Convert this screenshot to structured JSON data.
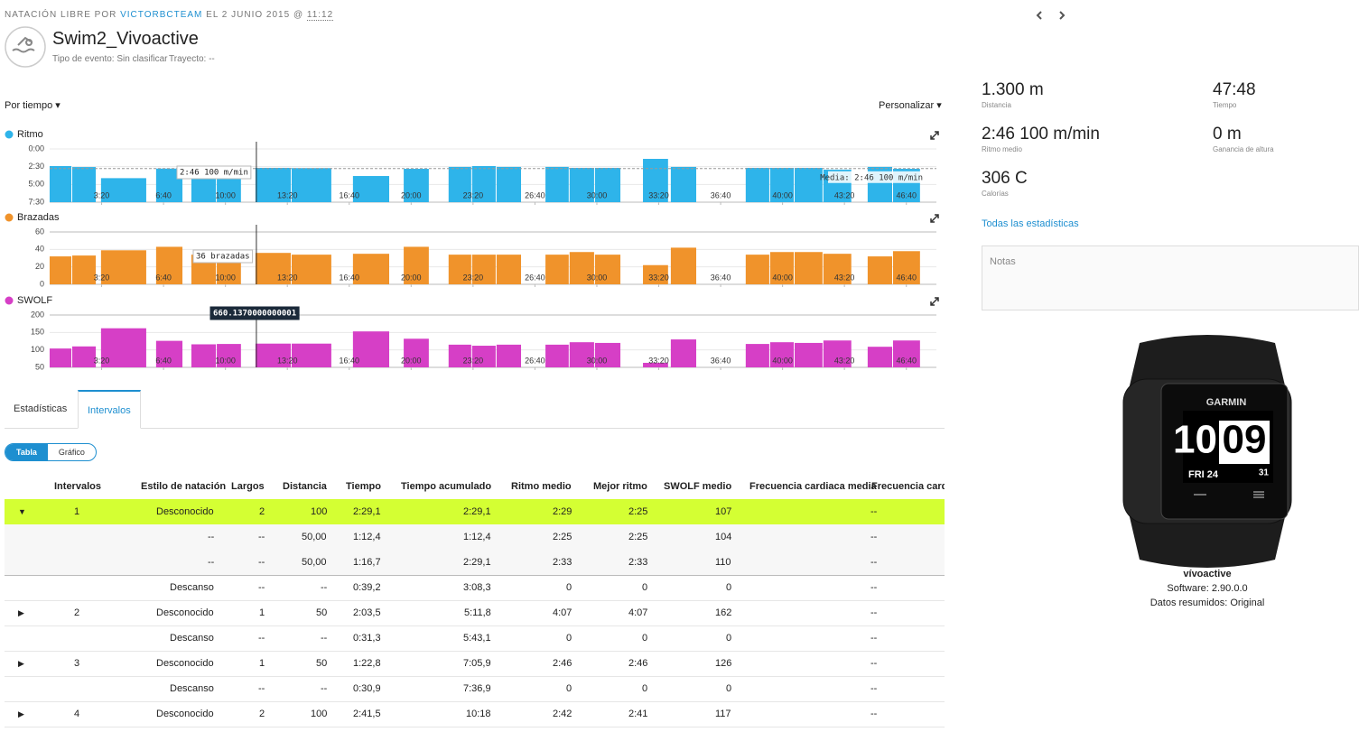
{
  "header": {
    "activity": "NATACIÓN LIBRE POR",
    "user": "VICTORBCTEAM",
    "date": "EL 2 JUNIO 2015 @",
    "time": "11:12",
    "title": "Swim2_Vivoactive",
    "event_type": "Tipo de evento: Sin clasificar",
    "course": "Trayecto: --"
  },
  "controls": {
    "time_mode": "Por tiempo",
    "customize": "Personalizar"
  },
  "chart_data": [
    {
      "type": "bar",
      "title": "Ritmo",
      "color": "#2eb4ea",
      "xlim": [
        0,
        2900
      ],
      "x_start": [
        32,
        105,
        198,
        376,
        490,
        572,
        697,
        814,
        1012,
        1176,
        1321,
        1397,
        1476,
        1634,
        1712,
        1794,
        1949,
        2039,
        2281,
        2360,
        2439,
        2532,
        2675,
        2757
      ],
      "x_end": [
        105,
        184,
        347,
        464,
        572,
        653,
        814,
        945,
        1132,
        1260,
        1397,
        1476,
        1558,
        1712,
        1794,
        1879,
        2033,
        2124,
        2360,
        2439,
        2532,
        2625,
        2757,
        2847
      ],
      "values": [
        145,
        153,
        247,
        166,
        160,
        160,
        160,
        162,
        229,
        168,
        152,
        145,
        152,
        152,
        160,
        160,
        84,
        152,
        160,
        160,
        160,
        175,
        152,
        168
      ],
      "xticks": [
        {
          "value": 200,
          "label": "3:20"
        },
        {
          "value": 400,
          "label": "6:40"
        },
        {
          "value": 600,
          "label": "10:00"
        },
        {
          "value": 800,
          "label": "13:20"
        },
        {
          "value": 1000,
          "label": "16:40"
        },
        {
          "value": 1200,
          "label": "20:00"
        },
        {
          "value": 1400,
          "label": "23:20"
        },
        {
          "value": 1600,
          "label": "26:40"
        },
        {
          "value": 1800,
          "label": "30:00"
        },
        {
          "value": 2000,
          "label": "33:20"
        },
        {
          "value": 2200,
          "label": "36:40"
        },
        {
          "value": 2400,
          "label": "40:00"
        },
        {
          "value": 2600,
          "label": "43:20"
        },
        {
          "value": 2800,
          "label": "46:40"
        }
      ],
      "ylim": [
        0,
        450
      ],
      "y_inverted": true,
      "yticks": [
        {
          "value": 0,
          "label": "0:00"
        },
        {
          "value": 150,
          "label": "2:30"
        },
        {
          "value": 300,
          "label": "5:00"
        },
        {
          "value": 450,
          "label": "7:30"
        }
      ],
      "average": 166,
      "average_label": "Media: 2:46 100 m/min",
      "cursor": 700,
      "tooltip": "2:46 100 m/min",
      "tooltip_dark": false
    },
    {
      "type": "bar",
      "title": "Brazadas",
      "color": "#f0932b",
      "xlim": [
        0,
        2900
      ],
      "x_start": [
        32,
        105,
        198,
        376,
        490,
        572,
        697,
        814,
        1012,
        1176,
        1321,
        1397,
        1476,
        1634,
        1712,
        1794,
        1949,
        2039,
        2281,
        2360,
        2439,
        2532,
        2675,
        2757
      ],
      "x_end": [
        105,
        184,
        347,
        464,
        572,
        653,
        814,
        945,
        1132,
        1260,
        1397,
        1476,
        1558,
        1712,
        1794,
        1879,
        2033,
        2124,
        2360,
        2439,
        2532,
        2625,
        2757,
        2847
      ],
      "values": [
        32,
        33,
        39,
        43,
        34,
        36,
        36,
        34,
        35,
        43,
        34,
        34,
        34,
        34,
        37,
        34,
        22,
        42,
        34,
        37,
        37,
        35,
        32,
        38
      ],
      "xticks": [
        {
          "value": 200,
          "label": "3:20"
        },
        {
          "value": 400,
          "label": "6:40"
        },
        {
          "value": 600,
          "label": "10:00"
        },
        {
          "value": 800,
          "label": "13:20"
        },
        {
          "value": 1000,
          "label": "16:40"
        },
        {
          "value": 1200,
          "label": "20:00"
        },
        {
          "value": 1400,
          "label": "23:20"
        },
        {
          "value": 1600,
          "label": "26:40"
        },
        {
          "value": 1800,
          "label": "30:00"
        },
        {
          "value": 2000,
          "label": "33:20"
        },
        {
          "value": 2200,
          "label": "36:40"
        },
        {
          "value": 2400,
          "label": "40:00"
        },
        {
          "value": 2600,
          "label": "43:20"
        },
        {
          "value": 2800,
          "label": "46:40"
        }
      ],
      "ylim": [
        0,
        60
      ],
      "y_inverted": false,
      "yticks": [
        0,
        20,
        40,
        60
      ],
      "cursor": 700,
      "tooltip": "36 brazadas",
      "tooltip_dark": false
    },
    {
      "type": "bar",
      "title": "SWOLF",
      "color": "#d63fc6",
      "xlim": [
        0,
        2900
      ],
      "x_start": [
        32,
        105,
        198,
        376,
        490,
        572,
        697,
        814,
        1012,
        1176,
        1321,
        1397,
        1476,
        1634,
        1712,
        1794,
        1949,
        2039,
        2281,
        2360,
        2439,
        2532,
        2675,
        2757
      ],
      "x_end": [
        105,
        184,
        347,
        464,
        572,
        653,
        814,
        945,
        1132,
        1260,
        1397,
        1476,
        1558,
        1712,
        1794,
        1879,
        2033,
        2124,
        2360,
        2439,
        2532,
        2625,
        2757,
        2847
      ],
      "values": [
        104,
        110,
        162,
        126,
        116,
        117,
        118,
        118,
        153,
        132,
        115,
        112,
        115,
        115,
        122,
        120,
        63,
        130,
        117,
        122,
        120,
        127,
        109,
        127
      ],
      "xticks": [
        {
          "value": 200,
          "label": "3:20"
        },
        {
          "value": 400,
          "label": "6:40"
        },
        {
          "value": 600,
          "label": "10:00"
        },
        {
          "value": 800,
          "label": "13:20"
        },
        {
          "value": 1000,
          "label": "16:40"
        },
        {
          "value": 1200,
          "label": "20:00"
        },
        {
          "value": 1400,
          "label": "23:20"
        },
        {
          "value": 1600,
          "label": "26:40"
        },
        {
          "value": 1800,
          "label": "30:00"
        },
        {
          "value": 2000,
          "label": "33:20"
        },
        {
          "value": 2200,
          "label": "36:40"
        },
        {
          "value": 2400,
          "label": "40:00"
        },
        {
          "value": 2600,
          "label": "43:20"
        },
        {
          "value": 2800,
          "label": "46:40"
        }
      ],
      "ylim": [
        50,
        200
      ],
      "y_inverted": false,
      "yticks": [
        50,
        100,
        150,
        200
      ],
      "cursor": 700,
      "tooltip": "660.1370000000001",
      "tooltip_dark": true
    }
  ],
  "tabs": [
    "Estadísticas",
    "Intervalos"
  ],
  "active_tab": 1,
  "view_toggle": [
    "Tabla",
    "Gráfico"
  ],
  "active_view": 0,
  "table": {
    "columns": [
      "Intervalos",
      "Estilo de natación",
      "Largos",
      "Distancia",
      "Tiempo",
      "Tiempo acumulado",
      "Ritmo medio",
      "Mejor ritmo",
      "SWOLF medio",
      "Frecuencia cardiaca media",
      "Frecuencia cardiaca máxima"
    ],
    "rows": [
      [
        "1",
        "Desconocido",
        "2",
        "100",
        "2:29,1",
        "2:29,1",
        "2:29",
        "2:25",
        "107",
        "--"
      ],
      [
        null,
        "--",
        "--",
        "50,00",
        "1:12,4",
        "1:12,4",
        "2:25",
        "2:25",
        "104",
        "--"
      ],
      [
        null,
        "--",
        "--",
        "50,00",
        "1:16,7",
        "2:29,1",
        "2:33",
        "2:33",
        "110",
        "--"
      ],
      [
        null,
        "Descanso",
        "--",
        "--",
        "0:39,2",
        "3:08,3",
        "0",
        "0",
        "0",
        "--"
      ],
      [
        "2",
        "Desconocido",
        "1",
        "50",
        "2:03,5",
        "5:11,8",
        "4:07",
        "4:07",
        "162",
        "--"
      ],
      [
        null,
        "Descanso",
        "--",
        "--",
        "0:31,3",
        "5:43,1",
        "0",
        "0",
        "0",
        "--"
      ],
      [
        "3",
        "Desconocido",
        "1",
        "50",
        "1:22,8",
        "7:05,9",
        "2:46",
        "2:46",
        "126",
        "--"
      ],
      [
        null,
        "Descanso",
        "--",
        "--",
        "0:30,9",
        "7:36,9",
        "0",
        "0",
        "0",
        "--"
      ],
      [
        "4",
        "Desconocido",
        "2",
        "100",
        "2:41,5",
        "10:18",
        "2:42",
        "2:41",
        "117",
        "--"
      ]
    ],
    "highlighted_row": 0,
    "expanded_row": 0
  },
  "summary": [
    {
      "value": "1.300 m",
      "label": "Distancia"
    },
    {
      "value": "47:48",
      "label": "Tiempo"
    },
    {
      "value": "2:46 100 m/min",
      "label": "Ritmo medio"
    },
    {
      "value": "0 m",
      "label": "Ganancia de altura"
    },
    {
      "value": "306 C",
      "label": "Calorías"
    }
  ],
  "all_stats_link": "Todas las estadísticas",
  "notes_label": "Notas",
  "device": {
    "face": {
      "brand": "GARMIN",
      "hour": "10",
      "minute": "09",
      "date": "FRI 24",
      "number": "31"
    },
    "name": "vívoactive",
    "software": "Software: 2.90.0.0",
    "summary_data": "Datos resumidos: Original"
  }
}
